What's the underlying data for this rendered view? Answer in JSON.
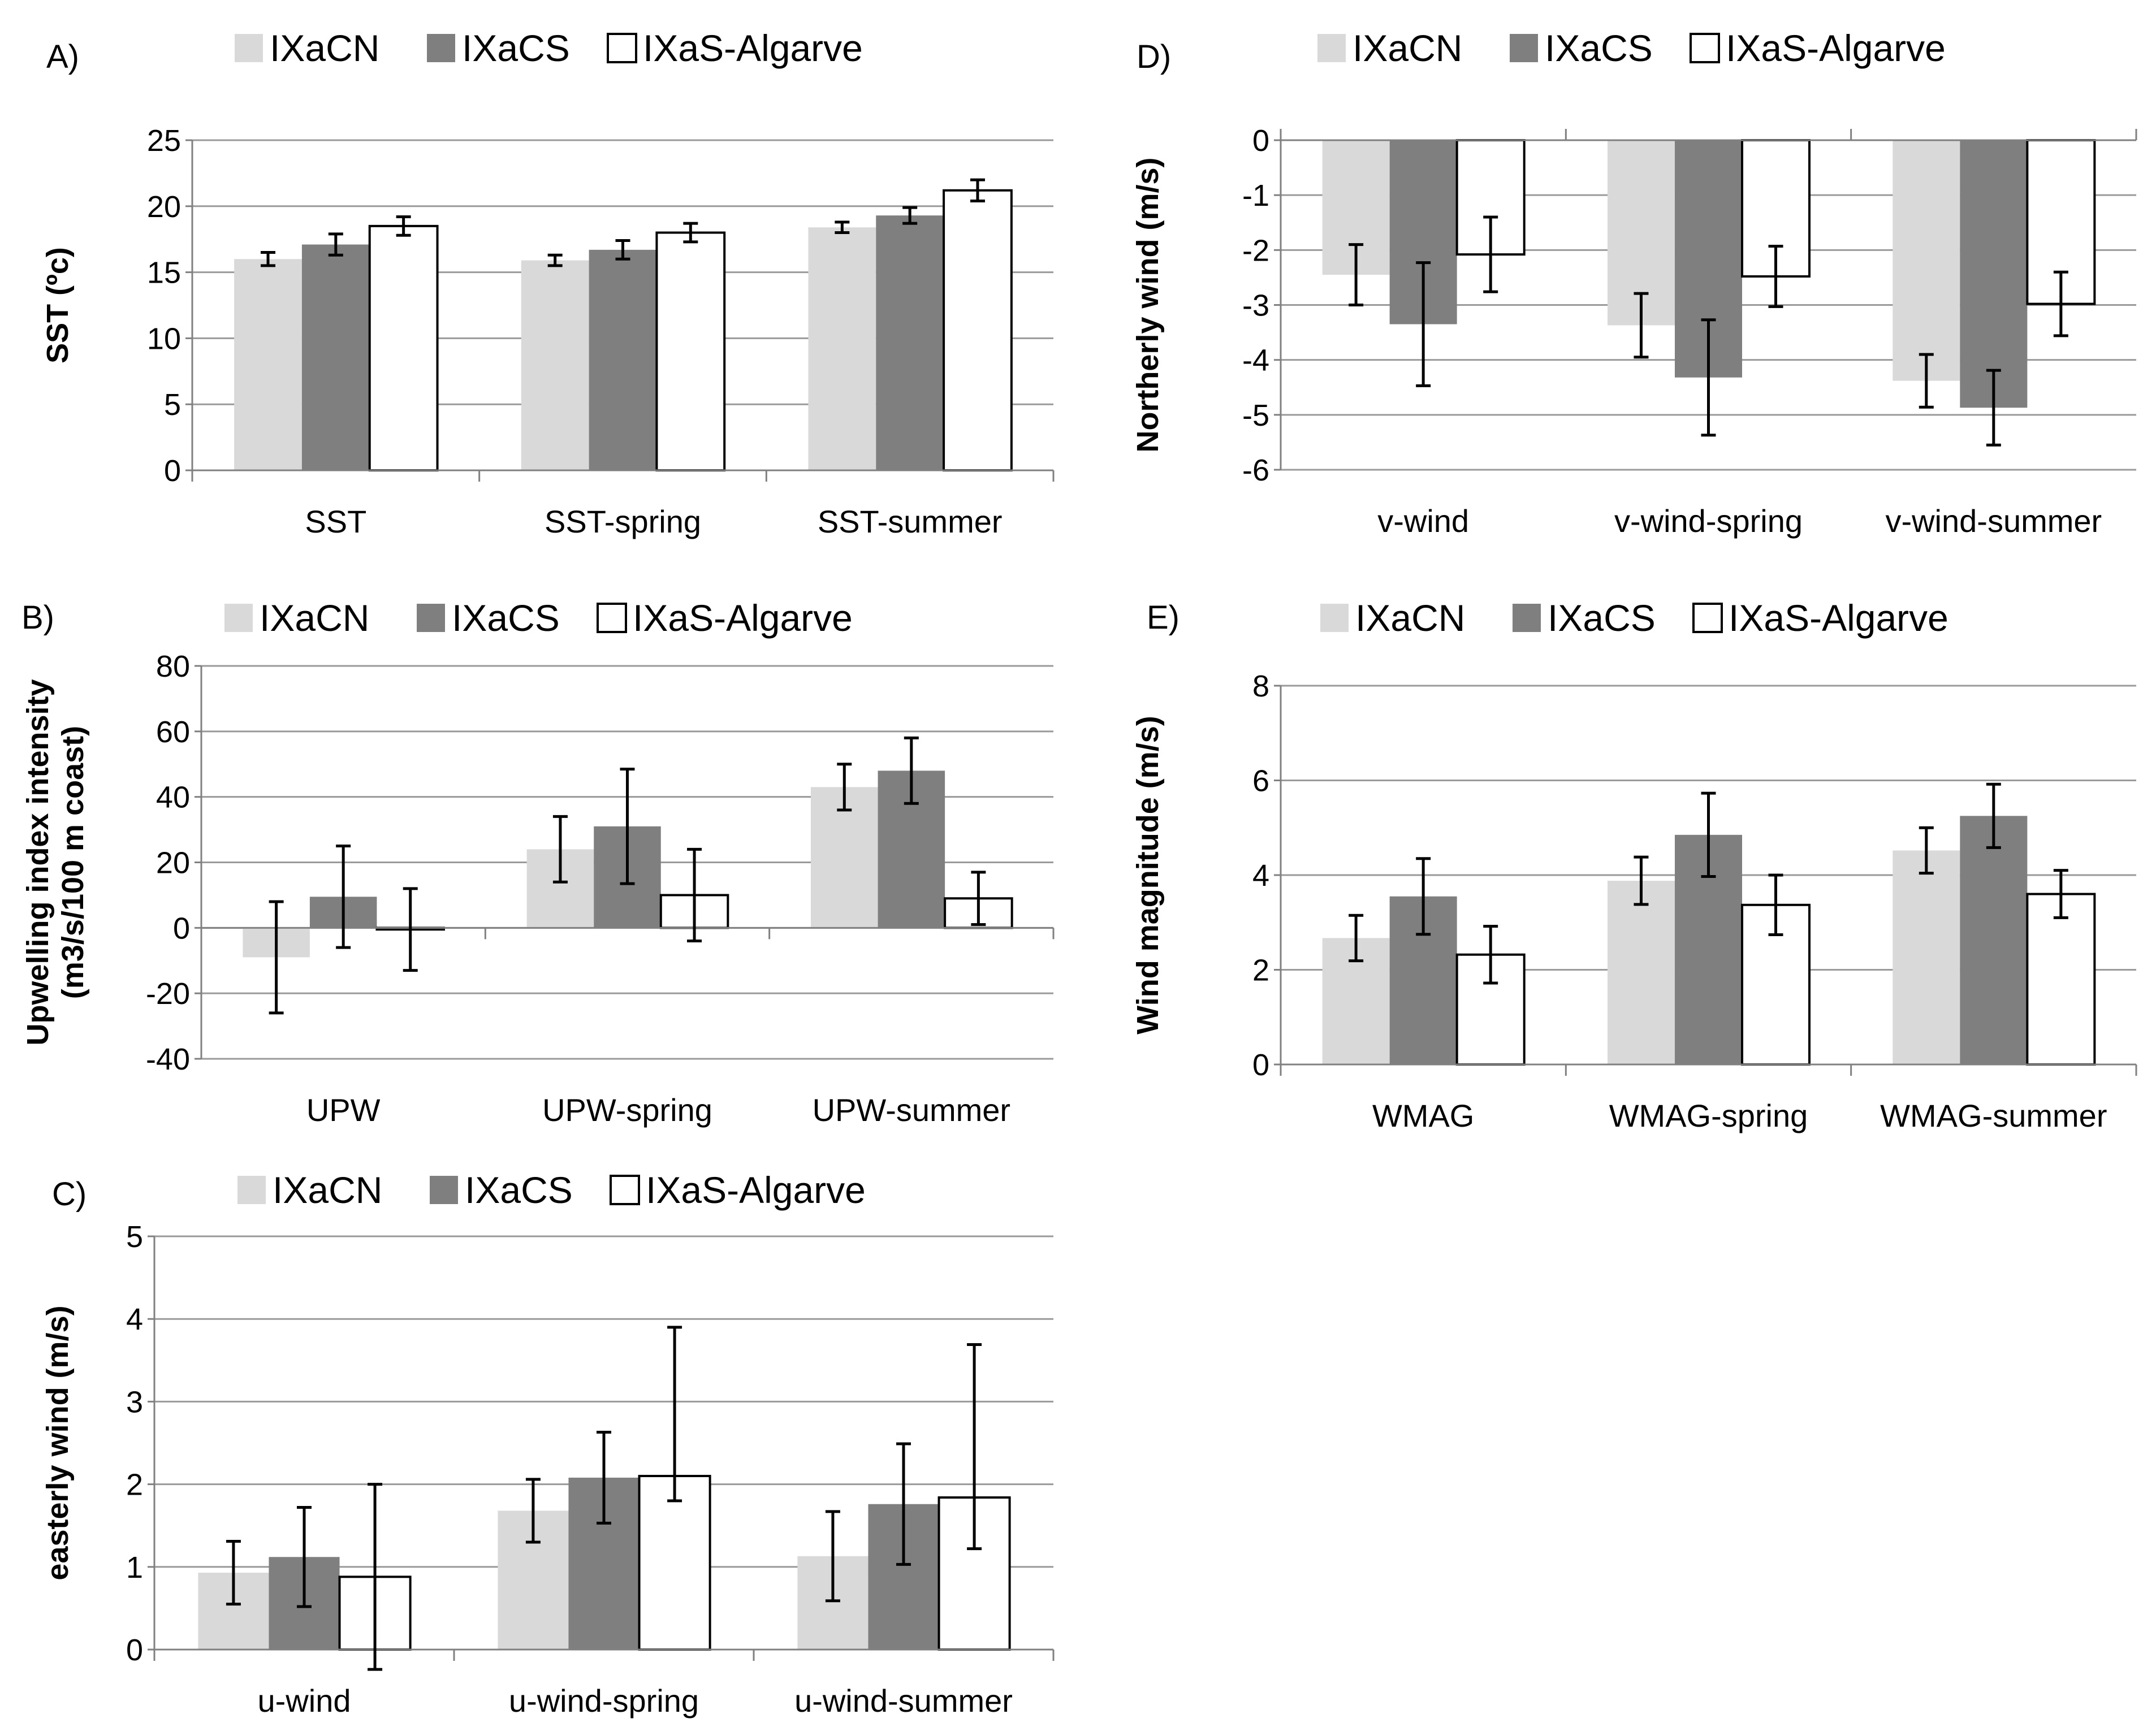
{
  "figure": {
    "title": ""
  },
  "chart_data": [
    {
      "id": "A",
      "panel_label": "A)",
      "type": "bar",
      "categories": [
        "SST",
        "SST-spring",
        "SST-summer"
      ],
      "series": [
        {
          "name": "IXaCN",
          "color": "#d9d9d9",
          "values": [
            16.0,
            15.9,
            18.4
          ],
          "err": [
            0.5,
            0.4,
            0.4
          ]
        },
        {
          "name": "IXaCS",
          "color": "#7f7f7f",
          "values": [
            17.1,
            16.7,
            19.3
          ],
          "err": [
            0.8,
            0.7,
            0.6
          ]
        },
        {
          "name": "IXaS-Algarve",
          "color": "#ffffff",
          "values": [
            18.5,
            18.0,
            21.2
          ],
          "err": [
            0.7,
            0.7,
            0.8
          ]
        }
      ],
      "ylabel": "SST (ºc)",
      "ylim": [
        0,
        25
      ],
      "yticks": [
        0,
        5,
        10,
        15,
        20,
        25
      ],
      "grid": true,
      "legend": "top"
    },
    {
      "id": "B",
      "panel_label": "B)",
      "type": "bar",
      "categories": [
        "UPW",
        "UPW-spring",
        "UPW-summer"
      ],
      "series": [
        {
          "name": "IXaCN",
          "color": "#d9d9d9",
          "values": [
            -9,
            24,
            43
          ],
          "err": [
            17,
            10,
            7
          ]
        },
        {
          "name": "IXaCS",
          "color": "#7f7f7f",
          "values": [
            9.5,
            31,
            48
          ],
          "err": [
            15.5,
            17.5,
            10
          ]
        },
        {
          "name": "IXaS-Algarve",
          "color": "#ffffff",
          "values": [
            -0.5,
            10,
            9
          ],
          "err": [
            12.5,
            14,
            8
          ]
        }
      ],
      "ylabel": "Upwelling index intensity",
      "ylabel2": "(m3/s/100 m coast)",
      "ylim": [
        -40,
        80
      ],
      "yticks": [
        -40,
        -20,
        0,
        20,
        40,
        60,
        80
      ],
      "grid": true,
      "legend": "top"
    },
    {
      "id": "C",
      "panel_label": "C)",
      "type": "bar",
      "categories": [
        "u-wind",
        "u-wind-spring",
        "u-wind-summer"
      ],
      "series": [
        {
          "name": "IXaCN",
          "color": "#d9d9d9",
          "values": [
            0.93,
            1.68,
            1.13
          ],
          "err": [
            0.38,
            0.38,
            0.54
          ]
        },
        {
          "name": "IXaCS",
          "color": "#7f7f7f",
          "values": [
            1.12,
            2.08,
            1.76
          ],
          "err": [
            0.6,
            0.55,
            0.73
          ]
        },
        {
          "name": "IXaS-Algarve",
          "color": "#ffffff",
          "values": [
            0.88,
            2.1,
            1.84
          ],
          "err": [
            1.12,
            0.3,
            0.62
          ],
          "err_high": [
            1.12,
            1.8,
            1.85
          ]
        }
      ],
      "ylabel": "easterly wind (m/s)",
      "ylim": [
        0,
        5
      ],
      "yticks": [
        0,
        1,
        2,
        3,
        4,
        5
      ],
      "grid": true,
      "legend": "top"
    },
    {
      "id": "D",
      "panel_label": "D)",
      "type": "bar",
      "categories": [
        "v-wind",
        "v-wind-spring",
        "v-wind-summer"
      ],
      "series": [
        {
          "name": "IXaCN",
          "color": "#d9d9d9",
          "values": [
            -2.45,
            -3.37,
            -4.38
          ],
          "err": [
            0.55,
            0.58,
            0.48
          ]
        },
        {
          "name": "IXaCS",
          "color": "#7f7f7f",
          "values": [
            -3.35,
            -4.32,
            -4.87
          ],
          "err": [
            1.12,
            1.05,
            0.68
          ]
        },
        {
          "name": "IXaS-Algarve",
          "color": "#ffffff",
          "values": [
            -2.08,
            -2.48,
            -2.98
          ],
          "err": [
            0.68,
            0.55,
            0.58
          ]
        }
      ],
      "ylabel": "Northerly wind (m/s)",
      "ylim": [
        -6,
        0
      ],
      "yticks": [
        -6,
        -5,
        -4,
        -3,
        -2,
        -1,
        0
      ],
      "grid": true,
      "legend": "top"
    },
    {
      "id": "E",
      "panel_label": "E)",
      "type": "bar",
      "categories": [
        "WMAG",
        "WMAG-spring",
        "WMAG-summer"
      ],
      "series": [
        {
          "name": "IXaCN",
          "color": "#d9d9d9",
          "values": [
            2.67,
            3.88,
            4.52
          ],
          "err": [
            0.48,
            0.5,
            0.48
          ]
        },
        {
          "name": "IXaCS",
          "color": "#7f7f7f",
          "values": [
            3.55,
            4.85,
            5.25
          ],
          "err": [
            0.8,
            0.88,
            0.67
          ]
        },
        {
          "name": "IXaS-Algarve",
          "color": "#ffffff",
          "values": [
            2.32,
            3.37,
            3.6
          ],
          "err": [
            0.6,
            0.63,
            0.5
          ]
        }
      ],
      "ylabel": "Wind magnitude (m/s)",
      "ylim": [
        0,
        8
      ],
      "yticks": [
        0,
        2,
        4,
        6,
        8
      ],
      "grid": true,
      "legend": "top"
    }
  ]
}
